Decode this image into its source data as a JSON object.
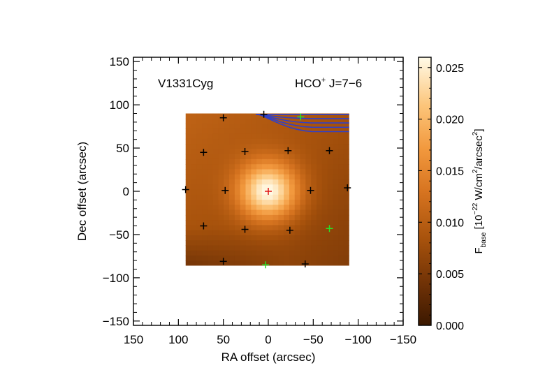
{
  "chart_data": {
    "type": "heatmap",
    "xlabel": "RA offset (arcsec)",
    "ylabel": "Dec offset (arcsec)",
    "xlim": [
      150,
      -150
    ],
    "ylim": [
      -155,
      155
    ],
    "x_ticks": [
      150,
      100,
      50,
      0,
      -50,
      -100,
      -150
    ],
    "x_tick_labels": [
      "150",
      "100",
      "50",
      "0",
      "−50",
      "−100",
      "−150"
    ],
    "y_ticks": [
      150,
      100,
      50,
      0,
      -50,
      -100,
      -150
    ],
    "y_tick_labels": [
      "150",
      "100",
      "50",
      "0",
      "−50",
      "−100",
      "−150"
    ],
    "source_label": "V1331Cyg",
    "line_label": {
      "molecule": "HCO",
      "charge": "+",
      "transition": " J=7−6"
    },
    "colorbar": {
      "label_parts": {
        "symbol": "F",
        "symbol_sub": "base",
        "units_open": " [10",
        "exp": "−22",
        "units_mid": " W/cm",
        "area_exp": "2",
        "units_per": "/arcsec",
        "arc_exp": "2",
        "units_close": "]"
      },
      "range": [
        0.0,
        0.026
      ],
      "ticks": [
        0.0,
        0.005,
        0.01,
        0.015,
        0.02,
        0.025
      ],
      "tick_labels": [
        "0.000",
        "0.005",
        "0.010",
        "0.015",
        "0.020",
        "0.025"
      ]
    },
    "map_extent": {
      "ra": [
        92,
        -90
      ],
      "dec": [
        -86,
        90
      ]
    },
    "peak": {
      "value": 0.026,
      "ra": 0,
      "dec": 0,
      "fwhm_arcsec": 55,
      "background": 0.008
    },
    "pixel_markers": {
      "black": [
        [
          50,
          85
        ],
        [
          5,
          89
        ],
        [
          72,
          45
        ],
        [
          26,
          46
        ],
        [
          -22,
          47
        ],
        [
          -68,
          47
        ],
        [
          92,
          2
        ],
        [
          48,
          1
        ],
        [
          -47,
          1
        ],
        [
          -88,
          4
        ],
        [
          72,
          -40
        ],
        [
          26,
          -44
        ],
        [
          -24,
          -45
        ],
        [
          50,
          -81
        ],
        [
          -41,
          -84
        ]
      ],
      "green": [
        [
          -36,
          86
        ],
        [
          -68,
          -43
        ],
        [
          3,
          -85
        ]
      ],
      "red": [
        [
          0,
          0
        ]
      ]
    },
    "contours": {
      "color": "#3040c8",
      "levels": 5,
      "ra_start": 14,
      "corner": [
        -90,
        90
      ],
      "offsets": [
        0,
        5,
        10,
        15,
        20
      ]
    }
  }
}
